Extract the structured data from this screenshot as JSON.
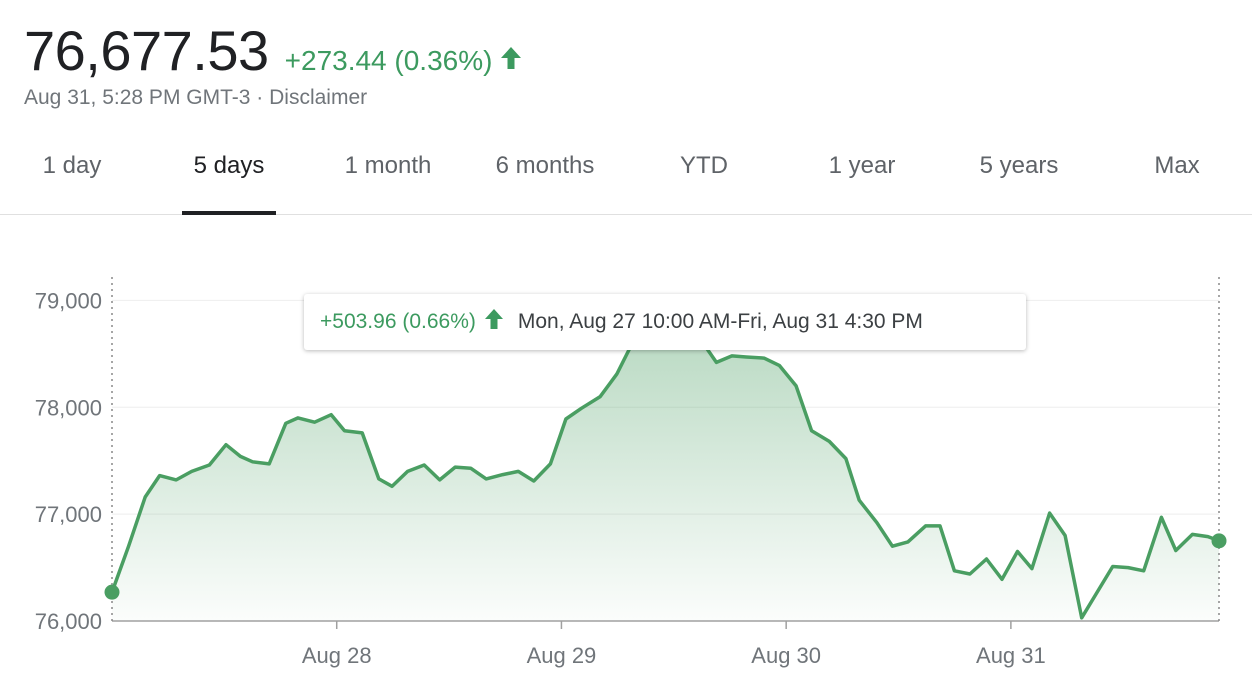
{
  "header": {
    "price": "76,677.53",
    "change": "+273.44 (0.36%)",
    "timestamp": "Aug 31, 5:28 PM GMT-3",
    "separator": "·",
    "disclaimer": "Disclaimer"
  },
  "tabs": [
    {
      "label": "1 day",
      "active": false
    },
    {
      "label": "5 days",
      "active": true
    },
    {
      "label": "1 month",
      "active": false
    },
    {
      "label": "6 months",
      "active": false
    },
    {
      "label": "YTD",
      "active": false
    },
    {
      "label": "1 year",
      "active": false
    },
    {
      "label": "5 years",
      "active": false
    },
    {
      "label": "Max",
      "active": false
    }
  ],
  "tooltip": {
    "change": "+503.96 (0.66%)",
    "range": "Mon, Aug 27 10:00 AM-Fri, Aug 31 4:30 PM"
  },
  "colors": {
    "positive": "#3c9a5f",
    "line": "#4a9e62",
    "text": "#202124",
    "muted": "#70757a"
  },
  "chart_data": {
    "type": "area",
    "ylim": [
      76000,
      79200
    ],
    "yticks": [
      76000,
      77000,
      78000,
      79000
    ],
    "ytick_labels": [
      "76,000",
      "77,000",
      "78,000",
      "79,000"
    ],
    "xlim": [
      0,
      100
    ],
    "xticks": [
      20.3,
      40.6,
      60.9,
      81.2
    ],
    "xtick_labels": [
      "Aug 28",
      "Aug 29",
      "Aug 30",
      "Aug 31"
    ],
    "grid": true,
    "series": [
      {
        "x": [
          0,
          1.5,
          3.0,
          4.3,
          5.8,
          7.2,
          8.8,
          10.3,
          11.6,
          12.7,
          14.2,
          15.7,
          16.8,
          18.3,
          19.8,
          21.0,
          22.6,
          24.1,
          25.3,
          26.7,
          28.2,
          29.6,
          31.0,
          32.4,
          33.8,
          35.3,
          36.7,
          38.1,
          39.6,
          41.0,
          42.4,
          44.1,
          45.6,
          47.2,
          48.6,
          50.1,
          51.6,
          53.0,
          54.6,
          56.0,
          57.3,
          58.9,
          60.3,
          61.8,
          63.2,
          64.8,
          66.3,
          67.5,
          69.1,
          70.5,
          71.9,
          73.5,
          74.8,
          76.1,
          77.5,
          79.0,
          80.4,
          81.8,
          83.1,
          84.7,
          86.1,
          87.6,
          89.0,
          90.4,
          91.8,
          93.2,
          94.8,
          96.1,
          97.6,
          99.0,
          100
        ],
        "y": [
          76270,
          76700,
          77160,
          77360,
          77320,
          77400,
          77460,
          77650,
          77540,
          77490,
          77470,
          77850,
          77900,
          77860,
          77930,
          77780,
          77760,
          77330,
          77260,
          77400,
          77460,
          77320,
          77440,
          77430,
          77330,
          77370,
          77400,
          77310,
          77470,
          77890,
          77990,
          78100,
          78310,
          78640,
          78680,
          78660,
          78670,
          78660,
          78420,
          78480,
          78470,
          78460,
          78390,
          78200,
          77780,
          77680,
          77520,
          77130,
          76920,
          76700,
          76740,
          76890,
          76890,
          76470,
          76440,
          76580,
          76390,
          76650,
          76490,
          77010,
          76800,
          76030,
          76270,
          76510,
          76500,
          76470,
          76970,
          76660,
          76810,
          76790,
          76750
        ]
      }
    ]
  }
}
